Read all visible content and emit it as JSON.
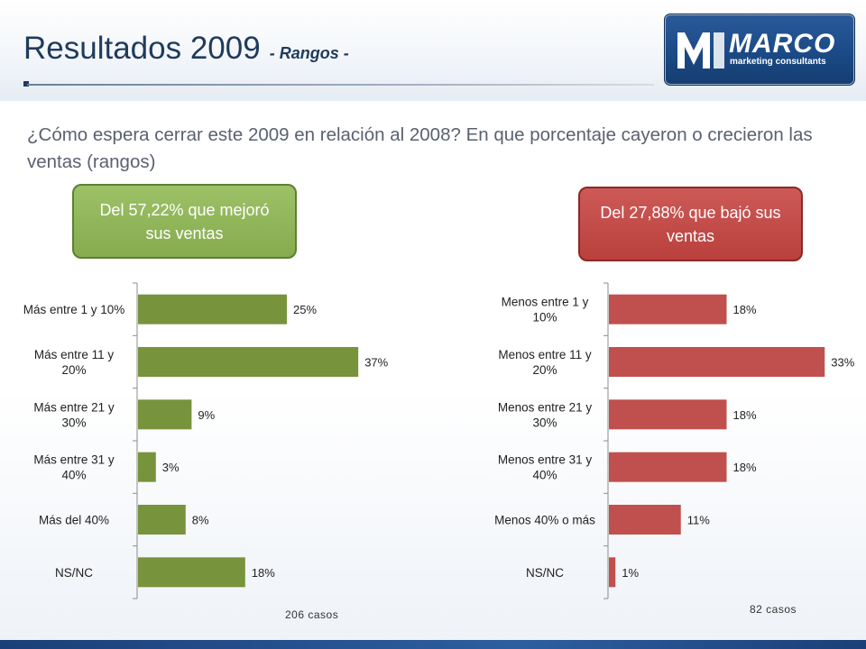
{
  "header": {
    "title": "Resultados 2009",
    "subtitle": "- Rangos -"
  },
  "logo": {
    "name": "MARCO",
    "tagline": "marketing consultants"
  },
  "question": "¿Cómo espera cerrar este 2009 en relación al 2008? En que porcentaje cayeron o crecieron las  ventas (rangos)",
  "callouts": {
    "left": "Del 57,22% que mejoró sus ventas",
    "right": "Del 27,88% que bajó sus ventas"
  },
  "colors": {
    "left_bar": "#77933c",
    "right_bar": "#c0504d",
    "title": "#1f3b5c"
  },
  "chart_data": [
    {
      "type": "bar",
      "orientation": "horizontal",
      "title": "Del 57,22% que mejoró sus ventas",
      "categories": [
        [
          "Más entre 1 y 10%"
        ],
        [
          "Más entre 11 y",
          "20%"
        ],
        [
          "Más entre 21 y",
          "30%"
        ],
        [
          "Más entre 31 y",
          "40%"
        ],
        [
          "Más del 40%"
        ],
        [
          "NS/NC"
        ]
      ],
      "values": [
        25,
        37,
        9,
        3,
        8,
        18
      ],
      "labels": [
        "25%",
        "37%",
        "9%",
        "3%",
        "8%",
        "18%"
      ],
      "unit": "%",
      "cases": "206 casos"
    },
    {
      "type": "bar",
      "orientation": "horizontal",
      "title": "Del 27,88% que bajó sus ventas",
      "categories": [
        [
          "Menos entre 1 y",
          "10%"
        ],
        [
          "Menos entre 11 y",
          "20%"
        ],
        [
          "Menos entre 21 y",
          "30%"
        ],
        [
          "Menos entre 31 y",
          "40%"
        ],
        [
          "Menos 40% o más"
        ],
        [
          "NS/NC"
        ]
      ],
      "values": [
        18,
        33,
        18,
        18,
        11,
        1
      ],
      "labels": [
        "18%",
        "33%",
        "18%",
        "18%",
        "11%",
        "1%"
      ],
      "unit": "%",
      "cases": "82 casos"
    }
  ]
}
